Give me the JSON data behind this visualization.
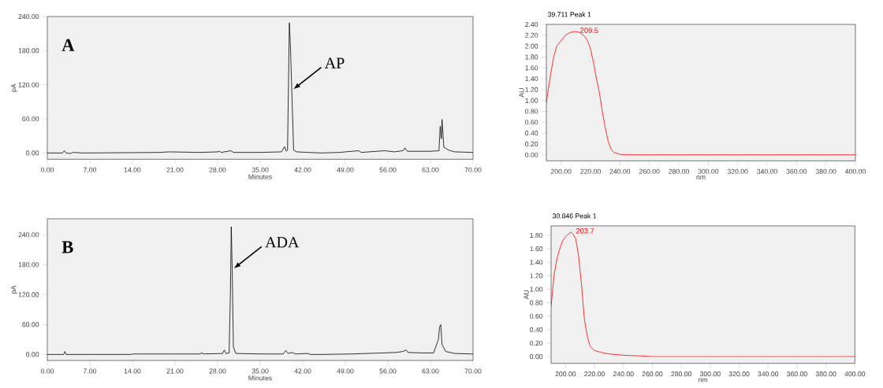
{
  "chart_data": [
    {
      "type": "line",
      "xlabel": "Minutes",
      "ylabel": "pA",
      "xlim": [
        0,
        70
      ],
      "ylim": [
        -11,
        240
      ],
      "xticks": [
        {
          "value": 0,
          "label": "0.00"
        },
        {
          "value": 7,
          "label": "7.00"
        },
        {
          "value": 14,
          "label": "14.00"
        },
        {
          "value": 21,
          "label": "21.00"
        },
        {
          "value": 28,
          "label": "28.00"
        },
        {
          "value": 35,
          "label": "35.00"
        },
        {
          "value": 42,
          "label": "42.00"
        },
        {
          "value": 49,
          "label": "49.00"
        },
        {
          "value": 56,
          "label": "56.00"
        },
        {
          "value": 63,
          "label": "63.00"
        },
        {
          "value": 70,
          "label": "70.00"
        }
      ],
      "yticks": [
        {
          "value": 0,
          "label": "0.00"
        },
        {
          "value": 60,
          "label": "60.00"
        },
        {
          "value": 120,
          "label": "120.00"
        },
        {
          "value": 180,
          "label": "180.00"
        },
        {
          "value": 240,
          "label": "240.00"
        }
      ],
      "annotations": [
        "A",
        {
          "text": "AP",
          "x": 40.2,
          "y": 110
        }
      ],
      "series": [
        {
          "color": "#000000",
          "x": [
            0,
            2.5,
            2.8,
            3.1,
            3.8,
            4.2,
            6,
            18.5,
            20,
            25,
            28,
            28.3,
            28.6,
            30.2,
            30.6,
            35,
            38.5,
            39,
            39.3,
            39.5,
            39.8,
            40.0,
            40.2,
            40.5,
            41,
            45,
            48,
            51.2,
            51.6,
            55.5,
            57,
            58.5,
            58.8,
            59.2,
            63,
            64.4,
            64.6,
            64.8,
            64.9,
            65.2,
            66,
            67,
            70
          ],
          "values": [
            0,
            0,
            4,
            0,
            -1,
            1,
            0,
            1,
            2,
            1,
            2,
            3,
            1,
            4,
            1,
            1,
            2,
            11,
            3,
            5,
            229,
            180,
            110,
            5,
            2,
            0,
            1,
            4,
            1,
            4,
            2,
            4,
            9,
            3,
            3,
            4,
            47,
            25,
            59,
            10,
            5,
            2,
            1
          ]
        }
      ]
    },
    {
      "type": "line",
      "title": "39.711 Peak 1",
      "xlabel": "nm",
      "ylabel": "AU",
      "xlim": [
        190,
        400
      ],
      "ylim": [
        -0.11,
        2.4
      ],
      "xticks": [
        {
          "value": 200,
          "label": "200.00"
        },
        {
          "value": 220,
          "label": "220.00"
        },
        {
          "value": 240,
          "label": "240.00"
        },
        {
          "value": 260,
          "label": "260.00"
        },
        {
          "value": 280,
          "label": "280.00"
        },
        {
          "value": 300,
          "label": "300.00"
        },
        {
          "value": 320,
          "label": "320.00"
        },
        {
          "value": 340,
          "label": "340.00"
        },
        {
          "value": 360,
          "label": "360.00"
        },
        {
          "value": 380,
          "label": "380.00"
        },
        {
          "value": 400,
          "label": "400.00"
        }
      ],
      "yticks": [
        {
          "value": 0,
          "label": "0.00"
        },
        {
          "value": 0.2,
          "label": "0.20"
        },
        {
          "value": 0.4,
          "label": "0.40"
        },
        {
          "value": 0.6,
          "label": "0.60"
        },
        {
          "value": 0.8,
          "label": "0.80"
        },
        {
          "value": 1.0,
          "label": "1.00"
        },
        {
          "value": 1.2,
          "label": "1.20"
        },
        {
          "value": 1.4,
          "label": "1.40"
        },
        {
          "value": 1.6,
          "label": "1.60"
        },
        {
          "value": 1.8,
          "label": "1.80"
        },
        {
          "value": 2.0,
          "label": "2.00"
        },
        {
          "value": 2.2,
          "label": "2.20"
        },
        {
          "value": 2.4,
          "label": "2.40"
        }
      ],
      "annotations": [
        {
          "text": "209.5",
          "x": 209.5,
          "y": 2.27
        }
      ],
      "series": [
        {
          "color": "#ff0000",
          "x": [
            190,
            191,
            193,
            195,
            197,
            200,
            203,
            206,
            209.5,
            213,
            216,
            218,
            220,
            222,
            224,
            226,
            228,
            230,
            232,
            234,
            236,
            240,
            243,
            400
          ],
          "values": [
            0.95,
            1.15,
            1.5,
            1.8,
            2.0,
            2.1,
            2.2,
            2.25,
            2.27,
            2.25,
            2.18,
            2.1,
            1.95,
            1.7,
            1.4,
            1.15,
            0.8,
            0.5,
            0.25,
            0.1,
            0.04,
            0.01,
            0,
            0
          ]
        }
      ]
    },
    {
      "type": "line",
      "xlabel": "Minutes",
      "ylabel": "pA",
      "xlim": [
        0,
        70
      ],
      "ylim": [
        -12,
        272
      ],
      "xticks": [
        {
          "value": 0,
          "label": "0.00"
        },
        {
          "value": 7,
          "label": "7.00"
        },
        {
          "value": 14,
          "label": "14.00"
        },
        {
          "value": 21,
          "label": "21.00"
        },
        {
          "value": 28,
          "label": "28.00"
        },
        {
          "value": 35,
          "label": "35.00"
        },
        {
          "value": 42,
          "label": "42.00"
        },
        {
          "value": 49,
          "label": "49.00"
        },
        {
          "value": 56,
          "label": "56.00"
        },
        {
          "value": 63,
          "label": "63.00"
        },
        {
          "value": 70,
          "label": "70.00"
        }
      ],
      "yticks": [
        {
          "value": 0,
          "label": "0.00"
        },
        {
          "value": 60,
          "label": "60.00"
        },
        {
          "value": 120,
          "label": "120.00"
        },
        {
          "value": 180,
          "label": "180.00"
        },
        {
          "value": 240,
          "label": "240.00"
        }
      ],
      "annotations": [
        "B",
        {
          "text": "ADA",
          "x": 30.4,
          "y": 170
        }
      ],
      "series": [
        {
          "color": "#000000",
          "x": [
            0,
            2.7,
            2.9,
            3.1,
            13.8,
            14,
            25.2,
            25.4,
            25.6,
            28.8,
            29.1,
            29.4,
            29.9,
            30.1,
            30.25,
            30.4,
            30.6,
            31,
            35,
            38.8,
            39.2,
            39.6,
            40.3,
            40.8,
            42.8,
            43.3,
            45,
            50,
            55,
            57.3,
            58.5,
            59,
            59.3,
            62,
            63.5,
            64.3,
            64.5,
            64.7,
            64.9,
            65.5,
            67,
            70
          ],
          "values": [
            0,
            0,
            6,
            0,
            0,
            1,
            1,
            4,
            1,
            2,
            9,
            2,
            3,
            120,
            256,
            170,
            15,
            2,
            1,
            1,
            8,
            2,
            4,
            1,
            2,
            0,
            0,
            1,
            3,
            4,
            6,
            9,
            4,
            3,
            3,
            30,
            55,
            60,
            20,
            6,
            2,
            1
          ]
        }
      ]
    },
    {
      "type": "line",
      "title": "30.846 Peak 1",
      "xlabel": "nm",
      "ylabel": "AU",
      "xlim": [
        190,
        400
      ],
      "ylim": [
        -0.1,
        1.94
      ],
      "xticks": [
        {
          "value": 200,
          "label": "200.00"
        },
        {
          "value": 220,
          "label": "220.00"
        },
        {
          "value": 240,
          "label": "240.00"
        },
        {
          "value": 260,
          "label": "260.00"
        },
        {
          "value": 280,
          "label": "280.00"
        },
        {
          "value": 300,
          "label": "300.00"
        },
        {
          "value": 320,
          "label": "320.00"
        },
        {
          "value": 340,
          "label": "340.00"
        },
        {
          "value": 360,
          "label": "360.00"
        },
        {
          "value": 380,
          "label": "380.00"
        },
        {
          "value": 400,
          "label": "400.00"
        }
      ],
      "yticks": [
        {
          "value": 0,
          "label": "0.00"
        },
        {
          "value": 0.2,
          "label": "0.20"
        },
        {
          "value": 0.4,
          "label": "0.40"
        },
        {
          "value": 0.6,
          "label": "0.60"
        },
        {
          "value": 0.8,
          "label": "0.80"
        },
        {
          "value": 1.0,
          "label": "1.00"
        },
        {
          "value": 1.2,
          "label": "1.20"
        },
        {
          "value": 1.4,
          "label": "1.40"
        },
        {
          "value": 1.6,
          "label": "1.60"
        },
        {
          "value": 1.8,
          "label": "1.80"
        }
      ],
      "annotations": [
        {
          "text": "203.7",
          "x": 203.7,
          "y": 1.85
        }
      ],
      "series": [
        {
          "color": "#ff0000",
          "x": [
            190,
            192,
            194,
            196,
            198,
            200,
            203.7,
            205,
            207,
            209,
            211,
            213,
            215,
            217,
            220,
            225,
            230,
            240,
            252,
            260,
            400
          ],
          "values": [
            0.75,
            1.2,
            1.45,
            1.6,
            1.72,
            1.78,
            1.85,
            1.82,
            1.75,
            1.5,
            1.07,
            0.56,
            0.3,
            0.15,
            0.09,
            0.06,
            0.04,
            0.02,
            0.01,
            0,
            0
          ]
        }
      ]
    }
  ]
}
